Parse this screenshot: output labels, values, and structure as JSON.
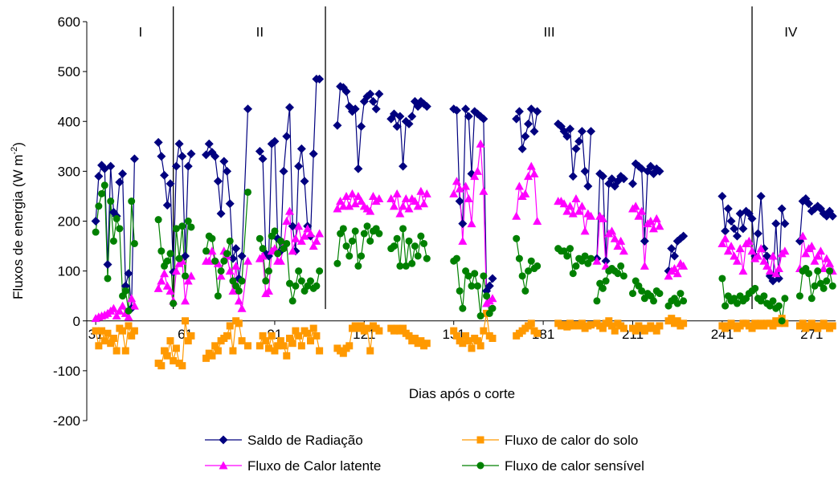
{
  "chart_data": {
    "type": "line",
    "y_label": {
      "text": "Fluxos de energia (W m",
      "sup": "-2",
      "close": ")"
    },
    "x_label": "Dias após o corte",
    "xlim": [
      28,
      279
    ],
    "xticks": [
      31,
      61,
      91,
      121,
      151,
      181,
      211,
      241,
      271
    ],
    "ylim": [
      -200,
      600
    ],
    "yticks": [
      -200,
      -100,
      0,
      100,
      200,
      300,
      400,
      500,
      600
    ],
    "separators": [
      57,
      108,
      251
    ],
    "annotations": [
      {
        "text": "I",
        "x": 46,
        "y": 570
      },
      {
        "text": "II",
        "x": 86,
        "y": 570
      },
      {
        "text": "III",
        "x": 183,
        "y": 570
      },
      {
        "text": "IV",
        "x": 264,
        "y": 570
      }
    ],
    "x": [
      31,
      32,
      33,
      34,
      35,
      36,
      37,
      38,
      39,
      40,
      41,
      42,
      43,
      44,
      48,
      52,
      53,
      54,
      55,
      56,
      57,
      58,
      59,
      60,
      61,
      62,
      63,
      66,
      68,
      69,
      70,
      71,
      72,
      73,
      74,
      75,
      76,
      77,
      78,
      79,
      80,
      82,
      84,
      86,
      87,
      88,
      89,
      90,
      91,
      92,
      93,
      94,
      95,
      96,
      97,
      98,
      99,
      100,
      101,
      102,
      103,
      104,
      105,
      106,
      109,
      112,
      113,
      114,
      115,
      116,
      117,
      118,
      119,
      120,
      121,
      122,
      123,
      124,
      125,
      126,
      128,
      130,
      131,
      132,
      133,
      134,
      135,
      136,
      137,
      138,
      139,
      140,
      141,
      142,
      146,
      151,
      152,
      153,
      154,
      155,
      156,
      157,
      158,
      159,
      160,
      161,
      162,
      163,
      164,
      168,
      172,
      173,
      174,
      175,
      176,
      177,
      178,
      179,
      183,
      186,
      187,
      188,
      189,
      190,
      191,
      192,
      193,
      194,
      195,
      196,
      197,
      198,
      199,
      200,
      201,
      202,
      203,
      204,
      205,
      206,
      207,
      208,
      210,
      211,
      212,
      213,
      214,
      215,
      216,
      217,
      218,
      219,
      220,
      221,
      223,
      224,
      225,
      226,
      227,
      228,
      235,
      241,
      242,
      243,
      244,
      245,
      246,
      247,
      248,
      249,
      250,
      251,
      252,
      253,
      254,
      255,
      256,
      257,
      258,
      259,
      260,
      261,
      262,
      265,
      267,
      268,
      269,
      270,
      271,
      272,
      273,
      274,
      275,
      276,
      277,
      278
    ],
    "series": [
      {
        "name": "Saldo de Radiação",
        "color": "#00007f",
        "marker": "diamond",
        "values": [
          200,
          290,
          312,
          305,
          113,
          310,
          218,
          210,
          278,
          295,
          70,
          95,
          25,
          325,
          null,
          358,
          330,
          292,
          232,
          275,
          98,
          310,
          355,
          330,
          130,
          310,
          335,
          null,
          333,
          355,
          338,
          330,
          280,
          215,
          320,
          300,
          235,
          125,
          145,
          85,
          130,
          425,
          null,
          340,
          325,
          135,
          130,
          355,
          360,
          165,
          140,
          300,
          370,
          428,
          190,
          140,
          310,
          345,
          280,
          190,
          170,
          335,
          485,
          485,
          null,
          392,
          470,
          468,
          460,
          430,
          420,
          425,
          305,
          390,
          440,
          450,
          455,
          440,
          425,
          455,
          null,
          405,
          415,
          390,
          410,
          310,
          400,
          395,
          410,
          440,
          430,
          440,
          435,
          430,
          null,
          425,
          422,
          240,
          195,
          425,
          410,
          295,
          420,
          415,
          410,
          405,
          60,
          70,
          85,
          null,
          405,
          420,
          345,
          370,
          395,
          425,
          380,
          420,
          null,
          395,
          390,
          380,
          370,
          385,
          290,
          345,
          360,
          380,
          300,
          270,
          380,
          null,
          125,
          295,
          290,
          120,
          275,
          285,
          270,
          280,
          290,
          285,
          null,
          275,
          315,
          310,
          305,
          160,
          300,
          310,
          295,
          305,
          300,
          null,
          100,
          145,
          130,
          160,
          165,
          170,
          null,
          250,
          180,
          225,
          200,
          185,
          170,
          215,
          185,
          220,
          215,
          205,
          130,
          175,
          250,
          145,
          130,
          90,
          80,
          195,
          85,
          225,
          195,
          null,
          160,
          240,
          245,
          235,
          220,
          225,
          230,
          225,
          215,
          210,
          220,
          210
        ]
      },
      {
        "name": "Fluxo de calor do solo",
        "color": "#ff9900",
        "marker": "square",
        "values": [
          -20,
          -50,
          -20,
          -40,
          -25,
          -45,
          -35,
          -60,
          -15,
          -20,
          -60,
          -10,
          -30,
          -20,
          null,
          -85,
          -90,
          -60,
          -70,
          -40,
          -80,
          -55,
          -85,
          -90,
          0,
          -40,
          -30,
          null,
          -75,
          -65,
          -70,
          -50,
          -60,
          -40,
          -35,
          -30,
          -10,
          -60,
          0,
          -5,
          -40,
          -50,
          null,
          -50,
          -30,
          -40,
          -55,
          -30,
          -60,
          -50,
          -40,
          -50,
          -70,
          -35,
          -45,
          -20,
          -30,
          -50,
          -20,
          -25,
          -40,
          -15,
          -30,
          -60,
          null,
          -55,
          -60,
          -65,
          -55,
          -50,
          -15,
          -10,
          -15,
          -10,
          -20,
          -15,
          -60,
          -10,
          -15,
          -20,
          null,
          -15,
          -20,
          -15,
          -20,
          -15,
          -25,
          -30,
          -40,
          -35,
          -45,
          -40,
          -50,
          -45,
          null,
          -20,
          -30,
          -40,
          -45,
          -30,
          -40,
          -55,
          -35,
          -40,
          -50,
          -20,
          15,
          -30,
          -35,
          null,
          -30,
          -25,
          -20,
          -15,
          -10,
          -5,
          -20,
          -25,
          null,
          -5,
          -10,
          -8,
          -12,
          -5,
          -10,
          -8,
          -10,
          -5,
          -15,
          -10,
          -8,
          null,
          -5,
          -10,
          -15,
          -5,
          0,
          -10,
          -20,
          -5,
          -10,
          -15,
          null,
          -15,
          -20,
          -10,
          -15,
          -20,
          -15,
          -10,
          -15,
          -20,
          -10,
          null,
          0,
          5,
          -5,
          0,
          -10,
          -5,
          null,
          -10,
          -15,
          -10,
          -5,
          -10,
          -15,
          -10,
          -5,
          -5,
          -10,
          -15,
          -5,
          -10,
          -5,
          -10,
          -5,
          -5,
          -10,
          0,
          -5,
          5,
          -5,
          null,
          -10,
          -5,
          -15,
          -10,
          -5,
          -10,
          -15,
          -10,
          -5,
          -10,
          -15,
          -10
        ]
      },
      {
        "name": "Fluxo de Calor latente",
        "color": "#ff00ff",
        "marker": "triangle",
        "values": [
          5,
          8,
          10,
          12,
          15,
          20,
          25,
          10,
          20,
          30,
          15,
          8,
          45,
          30,
          null,
          65,
          80,
          95,
          70,
          60,
          40,
          100,
          115,
          120,
          40,
          80,
          90,
          null,
          120,
          120,
          140,
          120,
          115,
          90,
          140,
          130,
          100,
          60,
          110,
          40,
          25,
          120,
          null,
          125,
          130,
          55,
          60,
          140,
          145,
          120,
          120,
          150,
          200,
          220,
          140,
          165,
          190,
          160,
          170,
          185,
          175,
          150,
          160,
          175,
          null,
          225,
          240,
          230,
          250,
          230,
          255,
          235,
          250,
          240,
          230,
          225,
          220,
          250,
          240,
          245,
          null,
          245,
          230,
          255,
          215,
          230,
          245,
          225,
          245,
          240,
          230,
          260,
          235,
          255,
          null,
          255,
          280,
          265,
          160,
          270,
          245,
          195,
          290,
          300,
          355,
          260,
          35,
          40,
          45,
          null,
          210,
          270,
          250,
          255,
          290,
          310,
          295,
          200,
          null,
          240,
          240,
          235,
          220,
          230,
          215,
          245,
          220,
          230,
          180,
          215,
          210,
          null,
          120,
          210,
          205,
          110,
          175,
          180,
          165,
          150,
          160,
          140,
          null,
          225,
          230,
          210,
          220,
          110,
          195,
          200,
          185,
          205,
          190,
          null,
          90,
          100,
          105,
          95,
          115,
          110,
          null,
          155,
          165,
          140,
          150,
          130,
          120,
          145,
          100,
          155,
          160,
          140,
          125,
          130,
          145,
          120,
          110,
          100,
          130,
          95,
          105,
          135,
          140,
          null,
          105,
          170,
          135,
          145,
          150,
          120,
          130,
          140,
          105,
          125,
          115,
          100
        ]
      },
      {
        "name": "Fluxo de calor sensível",
        "color": "#008000",
        "marker": "circle",
        "values": [
          178,
          230,
          255,
          272,
          85,
          240,
          160,
          205,
          185,
          50,
          60,
          20,
          240,
          155,
          null,
          203,
          140,
          110,
          120,
          135,
          35,
          185,
          125,
          190,
          90,
          200,
          188,
          null,
          140,
          170,
          165,
          120,
          50,
          100,
          120,
          135,
          160,
          80,
          70,
          60,
          80,
          258,
          null,
          165,
          145,
          80,
          100,
          170,
          180,
          135,
          160,
          145,
          155,
          75,
          40,
          70,
          100,
          80,
          60,
          70,
          80,
          65,
          70,
          100,
          null,
          115,
          175,
          185,
          150,
          130,
          160,
          180,
          110,
          130,
          175,
          190,
          160,
          180,
          185,
          175,
          null,
          145,
          150,
          165,
          110,
          185,
          110,
          160,
          115,
          150,
          130,
          170,
          155,
          125,
          null,
          120,
          125,
          60,
          25,
          100,
          90,
          70,
          95,
          70,
          10,
          90,
          50,
          15,
          25,
          null,
          165,
          125,
          90,
          60,
          100,
          120,
          105,
          110,
          null,
          145,
          140,
          140,
          130,
          145,
          95,
          110,
          125,
          120,
          130,
          115,
          125,
          null,
          40,
          75,
          65,
          80,
          100,
          105,
          100,
          95,
          110,
          90,
          null,
          55,
          80,
          70,
          60,
          45,
          55,
          50,
          40,
          60,
          55,
          null,
          30,
          40,
          45,
          35,
          55,
          40,
          null,
          85,
          30,
          50,
          40,
          45,
          35,
          50,
          40,
          45,
          55,
          60,
          65,
          45,
          40,
          50,
          35,
          30,
          40,
          25,
          30,
          0,
          45,
          null,
          50,
          100,
          105,
          95,
          45,
          70,
          100,
          75,
          65,
          80,
          100,
          70
        ]
      }
    ]
  }
}
